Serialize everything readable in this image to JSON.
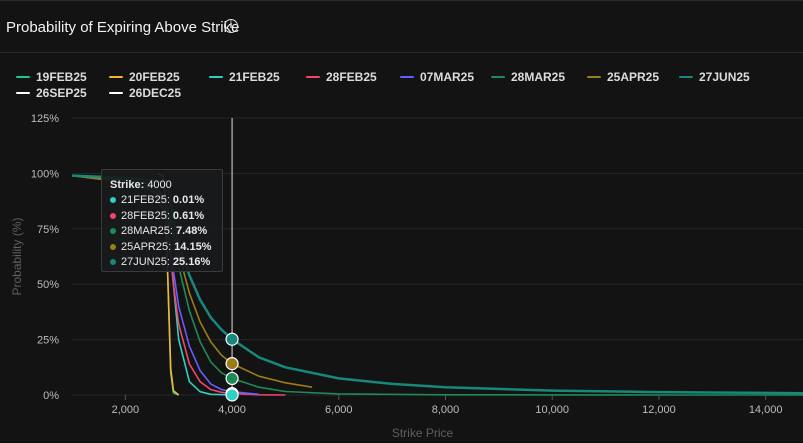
{
  "title": "Probability of Expiring Above Strike",
  "info_icon": "info-circle-icon",
  "legend": [
    {
      "label": "19FEB25",
      "color": "#22c493"
    },
    {
      "label": "20FEB25",
      "color": "#f5b431"
    },
    {
      "label": "21FEB25",
      "color": "#2ed1c4"
    },
    {
      "label": "28FEB25",
      "color": "#f0466c"
    },
    {
      "label": "07MAR25",
      "color": "#6b5cff"
    },
    {
      "label": "28MAR25",
      "color": "#1f8a58"
    },
    {
      "label": "25APR25",
      "color": "#9a7d14"
    },
    {
      "label": "27JUN25",
      "color": "#18877c"
    },
    {
      "label": "26SEP25",
      "color": "#ffffff"
    },
    {
      "label": "26DEC25",
      "color": "#ffffff"
    }
  ],
  "tooltip": {
    "strike_label": "Strike:",
    "strike_value": "4000",
    "rows": [
      {
        "label": "21FEB25:",
        "value": "0.01%",
        "color": "#2ed1c4"
      },
      {
        "label": "28FEB25:",
        "value": "0.61%",
        "color": "#f0466c"
      },
      {
        "label": "28MAR25:",
        "value": "7.48%",
        "color": "#1f8a58"
      },
      {
        "label": "25APR25:",
        "value": "14.15%",
        "color": "#9a7d14"
      },
      {
        "label": "27JUN25:",
        "value": "25.16%",
        "color": "#18877c"
      }
    ]
  },
  "chart_data": {
    "type": "line",
    "title": "Probability of Expiring Above Strike",
    "xlabel": "Strike Price",
    "ylabel": "Probability (%)",
    "xlim": [
      1000,
      14700
    ],
    "ylim": [
      0,
      125
    ],
    "x_ticks": [
      2000,
      4000,
      6000,
      8000,
      10000,
      12000,
      14000
    ],
    "x_tick_labels": [
      "2,000",
      "4,000",
      "6,000",
      "8,000",
      "10,000",
      "12,000",
      "14,000"
    ],
    "y_ticks": [
      0,
      25,
      50,
      75,
      100,
      125
    ],
    "y_tick_labels": [
      "0%",
      "25%",
      "50%",
      "75%",
      "100%",
      "125%"
    ],
    "crosshair_x": 4000,
    "series": [
      {
        "name": "19FEB25",
        "color": "#22c493",
        "x": [
          2600,
          2700,
          2750,
          2800,
          2850,
          2900,
          3000
        ],
        "y": [
          100,
          99,
          90,
          50,
          10,
          1,
          0
        ]
      },
      {
        "name": "20FEB25",
        "color": "#f5b431",
        "x": [
          2600,
          2700,
          2750,
          2800,
          2850,
          2900,
          3000
        ],
        "y": [
          100,
          99,
          88,
          50,
          12,
          2,
          0
        ]
      },
      {
        "name": "21FEB25",
        "color": "#2ed1c4",
        "x": [
          1000,
          1500,
          2000,
          2500,
          2700,
          2800,
          2900,
          3000,
          3200,
          3400,
          3600,
          4000
        ],
        "y": [
          99,
          98,
          97,
          95,
          90,
          80,
          50,
          25,
          6,
          1.5,
          0.3,
          0.01
        ]
      },
      {
        "name": "28FEB25",
        "color": "#f0466c",
        "x": [
          1000,
          1500,
          2000,
          2500,
          2700,
          2800,
          2900,
          3000,
          3200,
          3400,
          3600,
          3800,
          4000,
          4500,
          5000
        ],
        "y": [
          99,
          98,
          96,
          93,
          85,
          74,
          50,
          32,
          14,
          6,
          2.5,
          1.2,
          0.61,
          0.1,
          0.02
        ]
      },
      {
        "name": "07MAR25",
        "color": "#6b5cff",
        "x": [
          1000,
          2000,
          2500,
          2700,
          2800,
          2900,
          3000,
          3200,
          3400,
          3600,
          3800,
          4000,
          4500
        ],
        "y": [
          99,
          96,
          92,
          84,
          74,
          56,
          40,
          22,
          11,
          5,
          2.5,
          1.5,
          0.3
        ]
      },
      {
        "name": "28MAR25",
        "color": "#1f8a58",
        "x": [
          1000,
          2000,
          2500,
          2700,
          2800,
          2900,
          3000,
          3200,
          3400,
          3600,
          3800,
          4000,
          4500,
          5000,
          6000,
          8000,
          10000,
          12000,
          14700
        ],
        "y": [
          99,
          96,
          93,
          88,
          82,
          70,
          58,
          38,
          24,
          15,
          10,
          7.48,
          3.5,
          1.6,
          0.5,
          0.1,
          0.03,
          0.01,
          0
        ]
      },
      {
        "name": "25APR25",
        "color": "#9a7d14",
        "x": [
          1000,
          2000,
          2500,
          2700,
          2800,
          2900,
          3000,
          3200,
          3400,
          3600,
          3800,
          4000,
          4500,
          5000,
          5500
        ],
        "y": [
          99,
          96,
          93,
          89,
          84,
          74,
          64,
          46,
          33,
          24,
          18,
          14.15,
          8.5,
          5.5,
          3.5
        ]
      },
      {
        "name": "27JUN25",
        "color": "#18877c",
        "x": [
          1000,
          2000,
          2500,
          2700,
          2800,
          2900,
          3000,
          3200,
          3400,
          3600,
          3800,
          4000,
          4500,
          5000,
          6000,
          7000,
          8000,
          10000,
          12000,
          14700
        ],
        "y": [
          99,
          98,
          97,
          96,
          94,
          80,
          68,
          54,
          43,
          35,
          29.5,
          25.16,
          17,
          12.5,
          7.5,
          5,
          3.5,
          2,
          1.3,
          0.8
        ]
      }
    ]
  }
}
